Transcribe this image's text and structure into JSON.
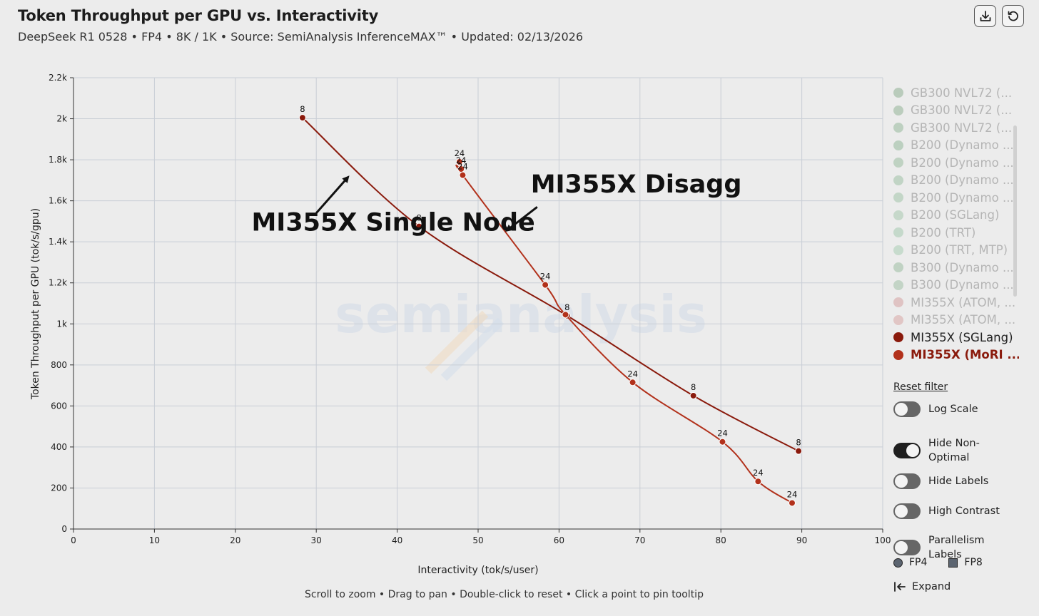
{
  "header": {
    "title": "Token Throughput per GPU vs. Interactivity",
    "subtitle": "DeepSeek R1 0528 • FP4 • 8K / 1K • Source: SemiAnalysis InferenceMAX™ • Updated: 02/13/2026",
    "download_icon": "download-icon",
    "reset_icon": "reset-icon"
  },
  "chart_data": {
    "type": "line",
    "xlabel": "Interactivity (tok/s/user)",
    "ylabel": "Token Throughput per GPU (tok/s/gpu)",
    "xlim": [
      0,
      100
    ],
    "ylim": [
      0,
      2200
    ],
    "x_ticks": [
      "0",
      "10",
      "20",
      "30",
      "40",
      "50",
      "60",
      "70",
      "80",
      "90",
      "100"
    ],
    "y_ticks": [
      "0",
      "200",
      "400",
      "600",
      "800",
      "1k",
      "1.2k",
      "1.4k",
      "1.6k",
      "1.8k",
      "2k",
      "2.2k"
    ],
    "grid": true,
    "watermark": "semianalysis",
    "series": [
      {
        "name": "MI355X (SGLang)",
        "color": "#8a1a0c",
        "points": [
          {
            "x": 28.3,
            "y": 2005,
            "label": "8"
          },
          {
            "x": 42.7,
            "y": 1475,
            "label": "8"
          },
          {
            "x": 61.0,
            "y": 1040,
            "label": "8"
          },
          {
            "x": 76.6,
            "y": 650,
            "label": "8"
          },
          {
            "x": 89.6,
            "y": 380,
            "label": "8"
          }
        ]
      },
      {
        "name": "MI355X (MoRI ...",
        "color": "#b2311b",
        "points": [
          {
            "x": 47.7,
            "y": 1790,
            "label": "24"
          },
          {
            "x": 47.9,
            "y": 1755,
            "label": "24"
          },
          {
            "x": 48.1,
            "y": 1725,
            "label": "24"
          },
          {
            "x": 58.3,
            "y": 1190,
            "label": "24"
          },
          {
            "x": 60.8,
            "y": 1045,
            "label": ""
          },
          {
            "x": 69.1,
            "y": 715,
            "label": "24"
          },
          {
            "x": 80.2,
            "y": 425,
            "label": "24"
          },
          {
            "x": 84.6,
            "y": 232,
            "label": "24"
          },
          {
            "x": 88.8,
            "y": 127,
            "label": "24"
          }
        ]
      }
    ],
    "annotations": [
      {
        "text": "MI355X Single Node",
        "x": 22.0,
        "y": 1455,
        "arrow_from": [
          30.0,
          1540
        ],
        "arrow_to": [
          33.8,
          1710
        ]
      },
      {
        "text": "MI355X Disagg",
        "x": 56.5,
        "y": 1640,
        "arrow_from": [
          57.3,
          1570
        ],
        "arrow_to": [
          53.7,
          1460
        ]
      }
    ]
  },
  "legend": {
    "items": [
      {
        "label": "GB300 NVL72 (...",
        "color": "#8fb094",
        "faded": true
      },
      {
        "label": "GB300 NVL72 (...",
        "color": "#93b598",
        "faded": true
      },
      {
        "label": "GB300 NVL72 (...",
        "color": "#98b99c",
        "faded": true
      },
      {
        "label": "B200 (Dynamo ...",
        "color": "#96b99c",
        "faded": true
      },
      {
        "label": "B200 (Dynamo ...",
        "color": "#9bbda1",
        "faded": true
      },
      {
        "label": "B200 (Dynamo ...",
        "color": "#9fc1a5",
        "faded": true
      },
      {
        "label": "B200 (Dynamo ...",
        "color": "#a3c4a9",
        "faded": true
      },
      {
        "label": "B200 (SGLang)",
        "color": "#a8c8ae",
        "faded": true
      },
      {
        "label": "B200 (TRT)",
        "color": "#a5cbb0",
        "faded": true
      },
      {
        "label": "B200 (TRT, MTP)",
        "color": "#a9ceb4",
        "faded": true
      },
      {
        "label": "B300 (Dynamo ...",
        "color": "#9dbda3",
        "faded": true
      },
      {
        "label": "B300 (Dynamo ...",
        "color": "#a2c1a8",
        "faded": true
      },
      {
        "label": "MI355X (ATOM, ...",
        "color": "#d6a3a3",
        "faded": true
      },
      {
        "label": "MI355X (ATOM, ...",
        "color": "#d9a8a6",
        "faded": true
      },
      {
        "label": "MI355X (SGLang)",
        "color": "#8a1a0c",
        "faded": false,
        "bold": false
      },
      {
        "label": "MI355X (MoRI ...",
        "color": "#b2311b",
        "faded": false,
        "bold": true,
        "text_color": "#8a1a0c"
      }
    ],
    "reset_filter": "Reset filter"
  },
  "controls": {
    "toggles": [
      {
        "label": "Log Scale",
        "on": false
      },
      {
        "label": "Hide Non-Optimal",
        "on": true
      },
      {
        "label": "Hide Labels",
        "on": false
      },
      {
        "label": "High Contrast",
        "on": false
      },
      {
        "label": "Parallelism Labels",
        "on": false
      }
    ],
    "precision": {
      "fp4": "FP4",
      "fp8": "FP8"
    },
    "expand": "Expand"
  },
  "footer": {
    "hint": "Scroll to zoom • Drag to pan • Double-click to reset • Click a point to pin tooltip"
  }
}
